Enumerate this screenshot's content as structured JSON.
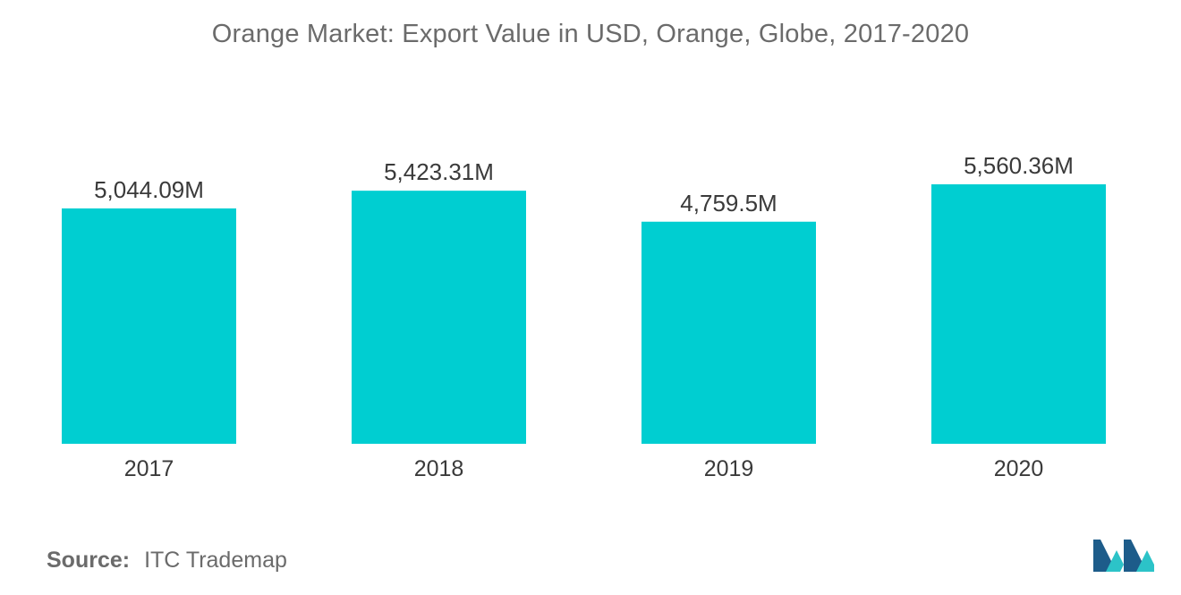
{
  "chart_data": {
    "type": "bar",
    "title": "Orange Market: Export Value in USD, Orange, Globe, 2017-2020",
    "categories": [
      "2017",
      "2018",
      "2019",
      "2020"
    ],
    "values": [
      5044.09,
      5423.31,
      4759.5,
      5560.36
    ],
    "data_labels": [
      "5,044.09M",
      "5,423.31M",
      "4,759.5M",
      "5,560.36M"
    ],
    "xlabel": "",
    "ylabel": "",
    "ylim": [
      0,
      5560.36
    ],
    "grid": false,
    "legend": "none",
    "bar_color": "#00ced1"
  },
  "footer": {
    "source_label": "Source:",
    "source_value": "ITC Trademap"
  },
  "colors": {
    "bar": "#00ced1",
    "text": "#6b6b6b",
    "logo_dark": "#1d5c8a",
    "logo_light": "#2cc3c8"
  },
  "logo": {
    "icon": "mordor-intelligence-logo-icon"
  }
}
